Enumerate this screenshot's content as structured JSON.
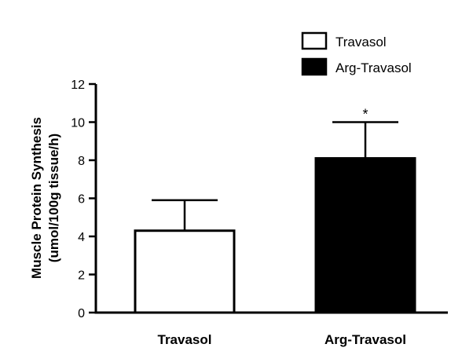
{
  "chart_data": {
    "type": "bar",
    "categories": [
      "Travasol",
      "Arg-Travasol"
    ],
    "values": [
      4.3,
      8.1
    ],
    "errors": [
      1.6,
      1.9
    ],
    "significance": [
      "",
      "*"
    ],
    "bar_colors": [
      "#ffffff",
      "#000000"
    ],
    "edge_color": "#000000",
    "title": "",
    "xlabel": "",
    "ylabel_lines": [
      "Muscle Protein Synthesis",
      "(umol/100g tissue/h)"
    ],
    "ylim": [
      0,
      12
    ],
    "yticks": [
      0,
      2,
      4,
      6,
      8,
      10,
      12
    ],
    "grid": false,
    "legend": {
      "placement": "top-right",
      "entries": [
        {
          "label": "Travasol",
          "color": "#ffffff"
        },
        {
          "label": "Arg-Travasol",
          "color": "#000000"
        }
      ]
    }
  }
}
